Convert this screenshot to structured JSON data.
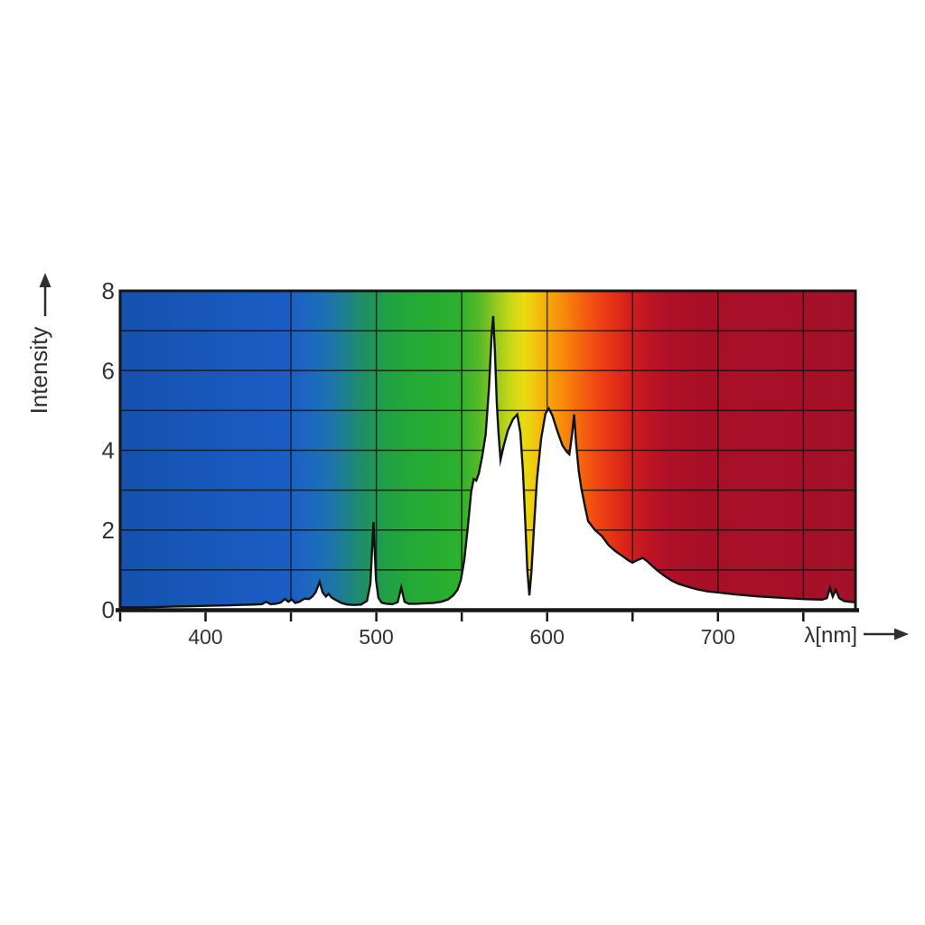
{
  "figure": {
    "description": "Spectral power distribution of a high-pressure sodium lamp drawn over a visible-spectrum colored background"
  },
  "chart_data": {
    "type": "area",
    "title": "",
    "xlabel": "λ[nm]",
    "ylabel": "Intensity",
    "x_domain": [
      350,
      780.5
    ],
    "y_domain": [
      0,
      8
    ],
    "grid": true,
    "legend": null,
    "axis_color": "#161616",
    "grid_color": "#101010",
    "curve_color": "#121212",
    "under_curve_fill": "#ffffff",
    "label_color": "#2f2f2f",
    "x_tick_labels": [
      {
        "value": 400,
        "label": "400"
      },
      {
        "value": 500,
        "label": "500"
      },
      {
        "value": 600,
        "label": "600"
      },
      {
        "value": 700,
        "label": "700"
      }
    ],
    "x_minor_ticks": [
      350,
      400,
      450,
      500,
      550,
      600,
      650,
      700,
      750
    ],
    "x_gridlines": [
      450,
      500,
      550,
      600,
      650,
      700,
      750
    ],
    "y_tick_labels": [
      {
        "value": 0,
        "label": "0"
      },
      {
        "value": 2,
        "label": "2"
      },
      {
        "value": 4,
        "label": "4"
      },
      {
        "value": 6,
        "label": "6"
      },
      {
        "value": 8,
        "label": "8"
      }
    ],
    "y_gridlines": [
      1,
      2,
      3,
      4,
      5,
      6,
      7
    ],
    "spectrum_gradient_stops": [
      {
        "nm": 350,
        "color": "#1551ae"
      },
      {
        "nm": 448,
        "color": "#1b5dc5"
      },
      {
        "nm": 465,
        "color": "#1c6bbd"
      },
      {
        "nm": 480,
        "color": "#1e7d96"
      },
      {
        "nm": 493,
        "color": "#1f9060"
      },
      {
        "nm": 506,
        "color": "#21a044"
      },
      {
        "nm": 522,
        "color": "#23aa37"
      },
      {
        "nm": 548,
        "color": "#2cb02e"
      },
      {
        "nm": 560,
        "color": "#55b928"
      },
      {
        "nm": 570,
        "color": "#93c91f"
      },
      {
        "nm": 578,
        "color": "#c6d718"
      },
      {
        "nm": 586,
        "color": "#e8dc12"
      },
      {
        "nm": 592,
        "color": "#f0cb0e"
      },
      {
        "nm": 600,
        "color": "#f6a90a"
      },
      {
        "nm": 610,
        "color": "#f6880b"
      },
      {
        "nm": 620,
        "color": "#f4650e"
      },
      {
        "nm": 630,
        "color": "#ee4413"
      },
      {
        "nm": 640,
        "color": "#e22f16"
      },
      {
        "nm": 650,
        "color": "#d01d1d"
      },
      {
        "nm": 658,
        "color": "#c01522"
      },
      {
        "nm": 668,
        "color": "#b21127"
      },
      {
        "nm": 685,
        "color": "#a90f27"
      },
      {
        "nm": 780.5,
        "color": "#a31129"
      }
    ],
    "series": [
      {
        "name": "intensity",
        "points": [
          [
            350,
            0.06
          ],
          [
            362,
            0.06
          ],
          [
            372,
            0.07
          ],
          [
            382,
            0.08
          ],
          [
            392,
            0.09
          ],
          [
            402,
            0.1
          ],
          [
            412,
            0.11
          ],
          [
            420,
            0.12
          ],
          [
            428,
            0.13
          ],
          [
            433,
            0.14
          ],
          [
            435.5,
            0.2
          ],
          [
            438,
            0.14
          ],
          [
            441,
            0.15
          ],
          [
            444,
            0.18
          ],
          [
            446.5,
            0.27
          ],
          [
            448.5,
            0.2
          ],
          [
            450.5,
            0.26
          ],
          [
            452.5,
            0.17
          ],
          [
            455,
            0.2
          ],
          [
            458,
            0.28
          ],
          [
            460.5,
            0.27
          ],
          [
            462.5,
            0.33
          ],
          [
            464.5,
            0.44
          ],
          [
            466.8,
            0.7
          ],
          [
            468.5,
            0.44
          ],
          [
            470.5,
            0.33
          ],
          [
            472,
            0.4
          ],
          [
            474,
            0.3
          ],
          [
            476.5,
            0.24
          ],
          [
            479.5,
            0.17
          ],
          [
            483,
            0.13
          ],
          [
            487,
            0.12
          ],
          [
            491,
            0.13
          ],
          [
            494.5,
            0.22
          ],
          [
            496.5,
            0.65
          ],
          [
            498.3,
            2.2
          ],
          [
            499.8,
            0.75
          ],
          [
            501.2,
            0.3
          ],
          [
            503,
            0.18
          ],
          [
            506,
            0.15
          ],
          [
            509.5,
            0.14
          ],
          [
            512.5,
            0.19
          ],
          [
            514.6,
            0.56
          ],
          [
            516.5,
            0.2
          ],
          [
            519,
            0.15
          ],
          [
            523,
            0.15
          ],
          [
            528,
            0.16
          ],
          [
            533,
            0.17
          ],
          [
            538,
            0.2
          ],
          [
            542,
            0.26
          ],
          [
            545,
            0.36
          ],
          [
            547.5,
            0.5
          ],
          [
            549.5,
            0.75
          ],
          [
            551.5,
            1.25
          ],
          [
            553.5,
            2.05
          ],
          [
            555.5,
            2.95
          ],
          [
            557,
            3.28
          ],
          [
            558.5,
            3.24
          ],
          [
            560,
            3.42
          ],
          [
            562,
            3.85
          ],
          [
            564,
            4.4
          ],
          [
            566,
            5.6
          ],
          [
            567.5,
            6.9
          ],
          [
            568.4,
            7.37
          ],
          [
            569.4,
            6.5
          ],
          [
            570.5,
            5.2
          ],
          [
            571.5,
            4.45
          ],
          [
            572.7,
            3.76
          ],
          [
            574.5,
            4.1
          ],
          [
            577,
            4.5
          ],
          [
            580,
            4.78
          ],
          [
            582.5,
            4.9
          ],
          [
            584.3,
            4.45
          ],
          [
            585.8,
            3.5
          ],
          [
            587.2,
            2.2
          ],
          [
            588.4,
            1.0
          ],
          [
            589.6,
            0.36
          ],
          [
            590.8,
            0.95
          ],
          [
            592.2,
            2.0
          ],
          [
            594,
            3.25
          ],
          [
            596.5,
            4.3
          ],
          [
            599,
            4.92
          ],
          [
            601,
            5.05
          ],
          [
            603,
            4.88
          ],
          [
            606,
            4.48
          ],
          [
            609,
            4.12
          ],
          [
            611.5,
            3.96
          ],
          [
            613,
            3.9
          ],
          [
            614.6,
            4.4
          ],
          [
            615.8,
            4.9
          ],
          [
            617,
            4.15
          ],
          [
            618.5,
            3.48
          ],
          [
            620,
            3.05
          ],
          [
            622,
            2.62
          ],
          [
            624,
            2.22
          ],
          [
            628,
            2.0
          ],
          [
            632,
            1.85
          ],
          [
            636,
            1.62
          ],
          [
            640,
            1.47
          ],
          [
            644,
            1.35
          ],
          [
            647.5,
            1.24
          ],
          [
            650,
            1.18
          ],
          [
            653,
            1.25
          ],
          [
            656,
            1.3
          ],
          [
            658.5,
            1.22
          ],
          [
            661.5,
            1.1
          ],
          [
            665,
            0.97
          ],
          [
            669,
            0.84
          ],
          [
            673,
            0.73
          ],
          [
            677,
            0.65
          ],
          [
            682,
            0.58
          ],
          [
            688,
            0.51
          ],
          [
            694,
            0.46
          ],
          [
            701,
            0.43
          ],
          [
            709,
            0.39
          ],
          [
            717,
            0.36
          ],
          [
            725,
            0.33
          ],
          [
            733,
            0.31
          ],
          [
            741,
            0.29
          ],
          [
            749,
            0.27
          ],
          [
            756,
            0.26
          ],
          [
            761,
            0.255
          ],
          [
            763.8,
            0.29
          ],
          [
            765.6,
            0.55
          ],
          [
            767.2,
            0.33
          ],
          [
            769,
            0.5
          ],
          [
            771,
            0.29
          ],
          [
            773.8,
            0.22
          ],
          [
            777,
            0.2
          ],
          [
            780.5,
            0.19
          ]
        ]
      }
    ]
  }
}
